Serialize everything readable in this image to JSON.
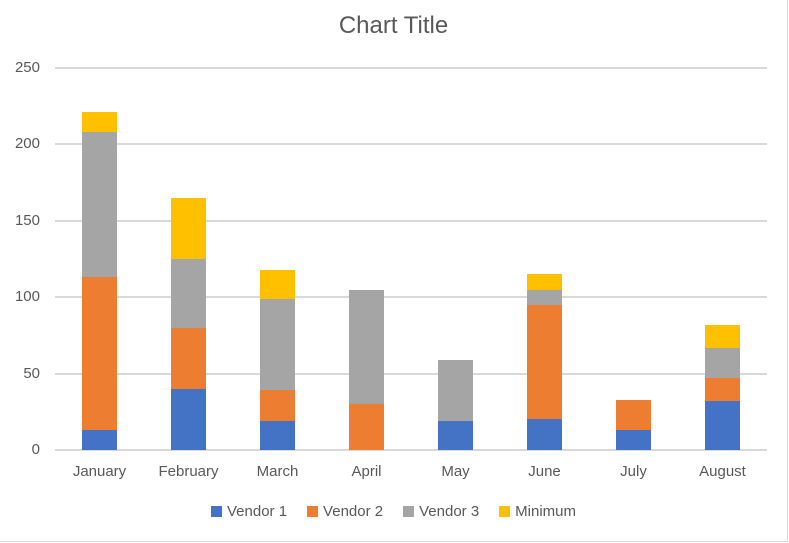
{
  "chart_data": {
    "type": "bar",
    "stacked": true,
    "title": "Chart Title",
    "xlabel": "",
    "ylabel": "",
    "ylim": [
      0,
      250
    ],
    "yticks": [
      0,
      50,
      100,
      150,
      200,
      250
    ],
    "grid": true,
    "legend_position": "bottom",
    "categories": [
      "January",
      "February",
      "March",
      "April",
      "May",
      "June",
      "July",
      "August"
    ],
    "series": [
      {
        "name": "Vendor 1",
        "color": "#4472C4",
        "values": [
          13,
          40,
          19,
          0,
          19,
          20,
          13,
          32
        ]
      },
      {
        "name": "Vendor 2",
        "color": "#ED7D31",
        "values": [
          100,
          40,
          20,
          30,
          0,
          75,
          20,
          15
        ]
      },
      {
        "name": "Vendor 3",
        "color": "#A5A5A5",
        "values": [
          95,
          45,
          60,
          75,
          40,
          10,
          0,
          20
        ]
      },
      {
        "name": "Minimum",
        "color": "#FFC000",
        "values": [
          13,
          40,
          19,
          0,
          0,
          10,
          0,
          15
        ]
      }
    ]
  }
}
